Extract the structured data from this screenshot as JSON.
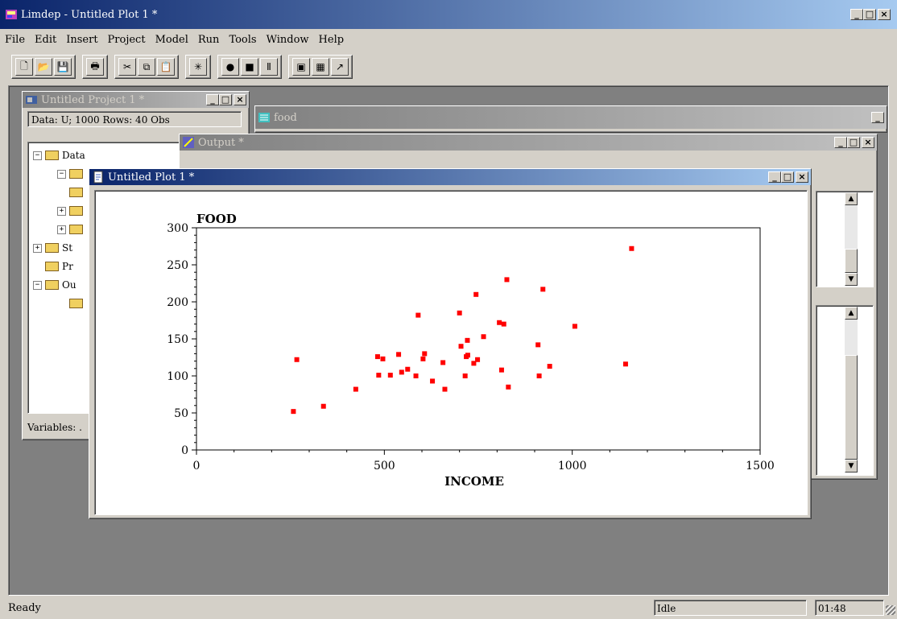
{
  "app": {
    "title": "Limdep - Untitled Plot 1 *",
    "menu": [
      "File",
      "Edit",
      "Insert",
      "Project",
      "Model",
      "Run",
      "Tools",
      "Window",
      "Help"
    ]
  },
  "toolbar": {
    "groups": [
      [
        "new-icon",
        "open-icon",
        "save-icon"
      ],
      [
        "print-icon"
      ],
      [
        "cut-icon",
        "copy-icon",
        "paste-icon"
      ],
      [
        "wizard-icon"
      ],
      [
        "go-icon",
        "stop-icon",
        "pause-icon"
      ],
      [
        "project-icon",
        "data-grid-icon",
        "output-icon"
      ]
    ]
  },
  "project_window": {
    "title": "Untitled Project 1 *",
    "info": "Data: U; 1000 Rows: 40 Obs",
    "tree": [
      {
        "label": "Data",
        "indent": 0,
        "toggle": "−"
      },
      {
        "label": "",
        "indent": 1,
        "toggle": "−"
      },
      {
        "label": "",
        "indent": 1,
        "toggle": ""
      },
      {
        "label": "",
        "indent": 1,
        "toggle": "+"
      },
      {
        "label": "",
        "indent": 1,
        "toggle": "+"
      },
      {
        "label": "St",
        "indent": 0,
        "toggle": "+"
      },
      {
        "label": "Pr",
        "indent": 0,
        "toggle": ""
      },
      {
        "label": "Ou",
        "indent": 0,
        "toggle": "−"
      },
      {
        "label": "",
        "indent": 1,
        "toggle": ""
      }
    ],
    "variables_label": "Variables: ."
  },
  "food_window": {
    "title": "food"
  },
  "output_window": {
    "title": "Output *"
  },
  "plot_window": {
    "title": "Untitled Plot 1 *"
  },
  "status": {
    "left": "Ready",
    "mode": "Idle",
    "time": "01:48"
  },
  "chart_data": {
    "type": "scatter",
    "title": "",
    "xlabel": "INCOME",
    "ylabel": "FOOD",
    "xlim": [
      0,
      1500
    ],
    "ylim": [
      0,
      300
    ],
    "xticks": [
      0,
      500,
      1000,
      1500
    ],
    "yticks": [
      0,
      50,
      100,
      150,
      200,
      250,
      300
    ],
    "marker_color": "#ff0000",
    "points": [
      [
        258,
        52
      ],
      [
        267,
        122
      ],
      [
        338,
        59
      ],
      [
        424,
        82
      ],
      [
        482,
        126
      ],
      [
        485,
        101
      ],
      [
        496,
        123
      ],
      [
        516,
        101
      ],
      [
        538,
        129
      ],
      [
        546,
        105
      ],
      [
        562,
        109
      ],
      [
        584,
        100
      ],
      [
        590,
        182
      ],
      [
        603,
        123
      ],
      [
        607,
        130
      ],
      [
        628,
        93
      ],
      [
        656,
        118
      ],
      [
        661,
        82
      ],
      [
        700,
        185
      ],
      [
        704,
        140
      ],
      [
        715,
        100
      ],
      [
        718,
        126
      ],
      [
        721,
        148
      ],
      [
        722,
        128
      ],
      [
        738,
        117
      ],
      [
        744,
        210
      ],
      [
        748,
        122
      ],
      [
        764,
        153
      ],
      [
        806,
        172
      ],
      [
        812,
        108
      ],
      [
        818,
        170
      ],
      [
        826,
        230
      ],
      [
        830,
        85
      ],
      [
        909,
        142
      ],
      [
        912,
        100
      ],
      [
        922,
        217
      ],
      [
        940,
        113
      ],
      [
        1007,
        167
      ],
      [
        1142,
        116
      ],
      [
        1158,
        272
      ]
    ]
  }
}
